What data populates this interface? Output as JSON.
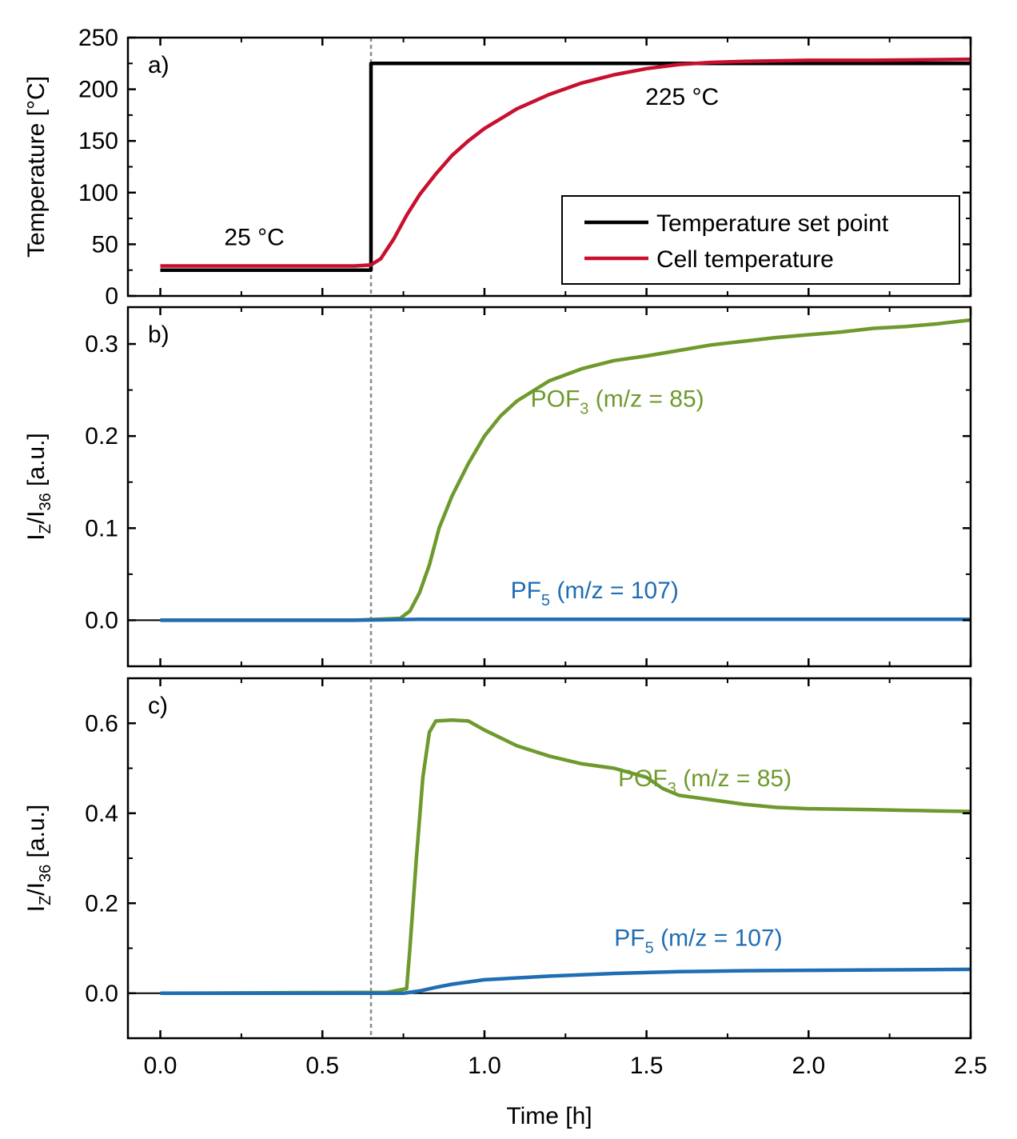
{
  "figure": {
    "xlabel": "Time [h]",
    "xlim": [
      -0.1,
      2.5
    ],
    "xticks": [
      0.0,
      0.5,
      1.0,
      1.5,
      2.0,
      2.5
    ],
    "xtick_labels": [
      "0.0",
      "0.5",
      "1.0",
      "1.5",
      "2.0",
      "2.5"
    ],
    "vline_x": 0.65,
    "colors": {
      "setpoint": "#000000",
      "cell": "#c8102e",
      "pof3": "#6e9a2d",
      "pf5": "#1f6db3",
      "vline": "#8c8c8c"
    }
  },
  "chart_data": [
    {
      "type": "line",
      "panel_label": "a)",
      "ylabel": "Temperature [°C]",
      "ylim": [
        0,
        250
      ],
      "yticks": [
        0,
        50,
        100,
        150,
        200,
        250
      ],
      "ytick_labels": [
        "0",
        "50",
        "100",
        "150",
        "200",
        "250"
      ],
      "annotations": [
        {
          "text": "25 °C",
          "x": 0.29,
          "y": 49
        },
        {
          "text": "225 °C",
          "x": 1.61,
          "y": 185
        }
      ],
      "legend": {
        "position": "bottom-right",
        "entries": [
          "Temperature set point",
          "Cell temperature"
        ]
      },
      "series": [
        {
          "name": "Temperature set point",
          "color": "#000000",
          "x": [
            0.0,
            0.65,
            0.65,
            2.5
          ],
          "y": [
            25,
            25,
            225,
            225
          ]
        },
        {
          "name": "Cell temperature",
          "color": "#c8102e",
          "x": [
            0.0,
            0.3,
            0.6,
            0.65,
            0.68,
            0.72,
            0.76,
            0.8,
            0.85,
            0.9,
            0.95,
            1.0,
            1.1,
            1.2,
            1.3,
            1.4,
            1.5,
            1.6,
            1.7,
            1.8,
            2.0,
            2.2,
            2.5
          ],
          "y": [
            29,
            29,
            29,
            30,
            36,
            55,
            78,
            98,
            118,
            136,
            150,
            162,
            181,
            195,
            206,
            214,
            220,
            224,
            226,
            227,
            228,
            228,
            229
          ]
        }
      ]
    },
    {
      "type": "line",
      "panel_label": "b)",
      "ylabel": "I_Z/I_36 [a.u.]",
      "ylim": [
        -0.05,
        0.34
      ],
      "yticks": [
        0.0,
        0.1,
        0.2,
        0.3
      ],
      "ytick_labels": [
        "0.0",
        "0.1",
        "0.2",
        "0.3"
      ],
      "annotations": [
        {
          "label": "POF",
          "sub": "3",
          "rest": " (m/z = 85)",
          "color": "#6e9a2d",
          "x": 1.41,
          "y": 0.232
        },
        {
          "label": "PF",
          "sub": "5",
          "rest": " (m/z = 107)",
          "color": "#1f6db3",
          "x": 1.34,
          "y": 0.024
        }
      ],
      "series": [
        {
          "label": "POF3",
          "color": "#6e9a2d",
          "x": [
            0.0,
            0.6,
            0.74,
            0.77,
            0.8,
            0.83,
            0.86,
            0.9,
            0.95,
            1.0,
            1.05,
            1.1,
            1.2,
            1.3,
            1.4,
            1.5,
            1.6,
            1.7,
            1.8,
            1.9,
            2.0,
            2.1,
            2.2,
            2.3,
            2.4,
            2.5
          ],
          "y": [
            0.0,
            0.0,
            0.002,
            0.01,
            0.03,
            0.06,
            0.1,
            0.135,
            0.17,
            0.2,
            0.222,
            0.238,
            0.26,
            0.273,
            0.282,
            0.287,
            0.293,
            0.299,
            0.303,
            0.307,
            0.31,
            0.313,
            0.317,
            0.319,
            0.322,
            0.326
          ]
        },
        {
          "label": "PF5",
          "color": "#1f6db3",
          "x": [
            0.0,
            0.6,
            0.8,
            1.0,
            1.5,
            2.0,
            2.5
          ],
          "y": [
            0.0,
            0.0,
            0.001,
            0.001,
            0.001,
            0.001,
            0.001
          ]
        }
      ]
    },
    {
      "type": "line",
      "panel_label": "c)",
      "ylabel": "I_Z/I_36 [a.u.]",
      "ylim": [
        -0.1,
        0.7
      ],
      "yticks": [
        0.0,
        0.2,
        0.4,
        0.6
      ],
      "ytick_labels": [
        "0.0",
        "0.2",
        "0.4",
        "0.6"
      ],
      "annotations": [
        {
          "label": "POF",
          "sub": "3",
          "rest": " (m/z = 85)",
          "color": "#6e9a2d",
          "x": 1.68,
          "y": 0.46
        },
        {
          "label": "PF",
          "sub": "5",
          "rest": " (m/z = 107)",
          "color": "#1f6db3",
          "x": 1.66,
          "y": 0.105
        }
      ],
      "series": [
        {
          "label": "POF3",
          "color": "#6e9a2d",
          "x": [
            0.0,
            0.7,
            0.76,
            0.77,
            0.79,
            0.81,
            0.83,
            0.85,
            0.9,
            0.95,
            1.0,
            1.1,
            1.2,
            1.3,
            1.4,
            1.5,
            1.55,
            1.6,
            1.7,
            1.8,
            1.9,
            2.0,
            2.2,
            2.4,
            2.5
          ],
          "y": [
            0.0,
            0.002,
            0.01,
            0.1,
            0.3,
            0.48,
            0.58,
            0.605,
            0.607,
            0.605,
            0.585,
            0.55,
            0.527,
            0.51,
            0.5,
            0.48,
            0.455,
            0.44,
            0.43,
            0.42,
            0.413,
            0.41,
            0.408,
            0.405,
            0.404
          ]
        },
        {
          "label": "PF5",
          "color": "#1f6db3",
          "x": [
            0.0,
            0.75,
            0.8,
            0.85,
            0.9,
            1.0,
            1.2,
            1.4,
            1.6,
            1.8,
            2.0,
            2.25,
            2.5
          ],
          "y": [
            0.0,
            0.0,
            0.005,
            0.013,
            0.02,
            0.03,
            0.038,
            0.044,
            0.048,
            0.05,
            0.051,
            0.052,
            0.053
          ]
        }
      ]
    }
  ]
}
